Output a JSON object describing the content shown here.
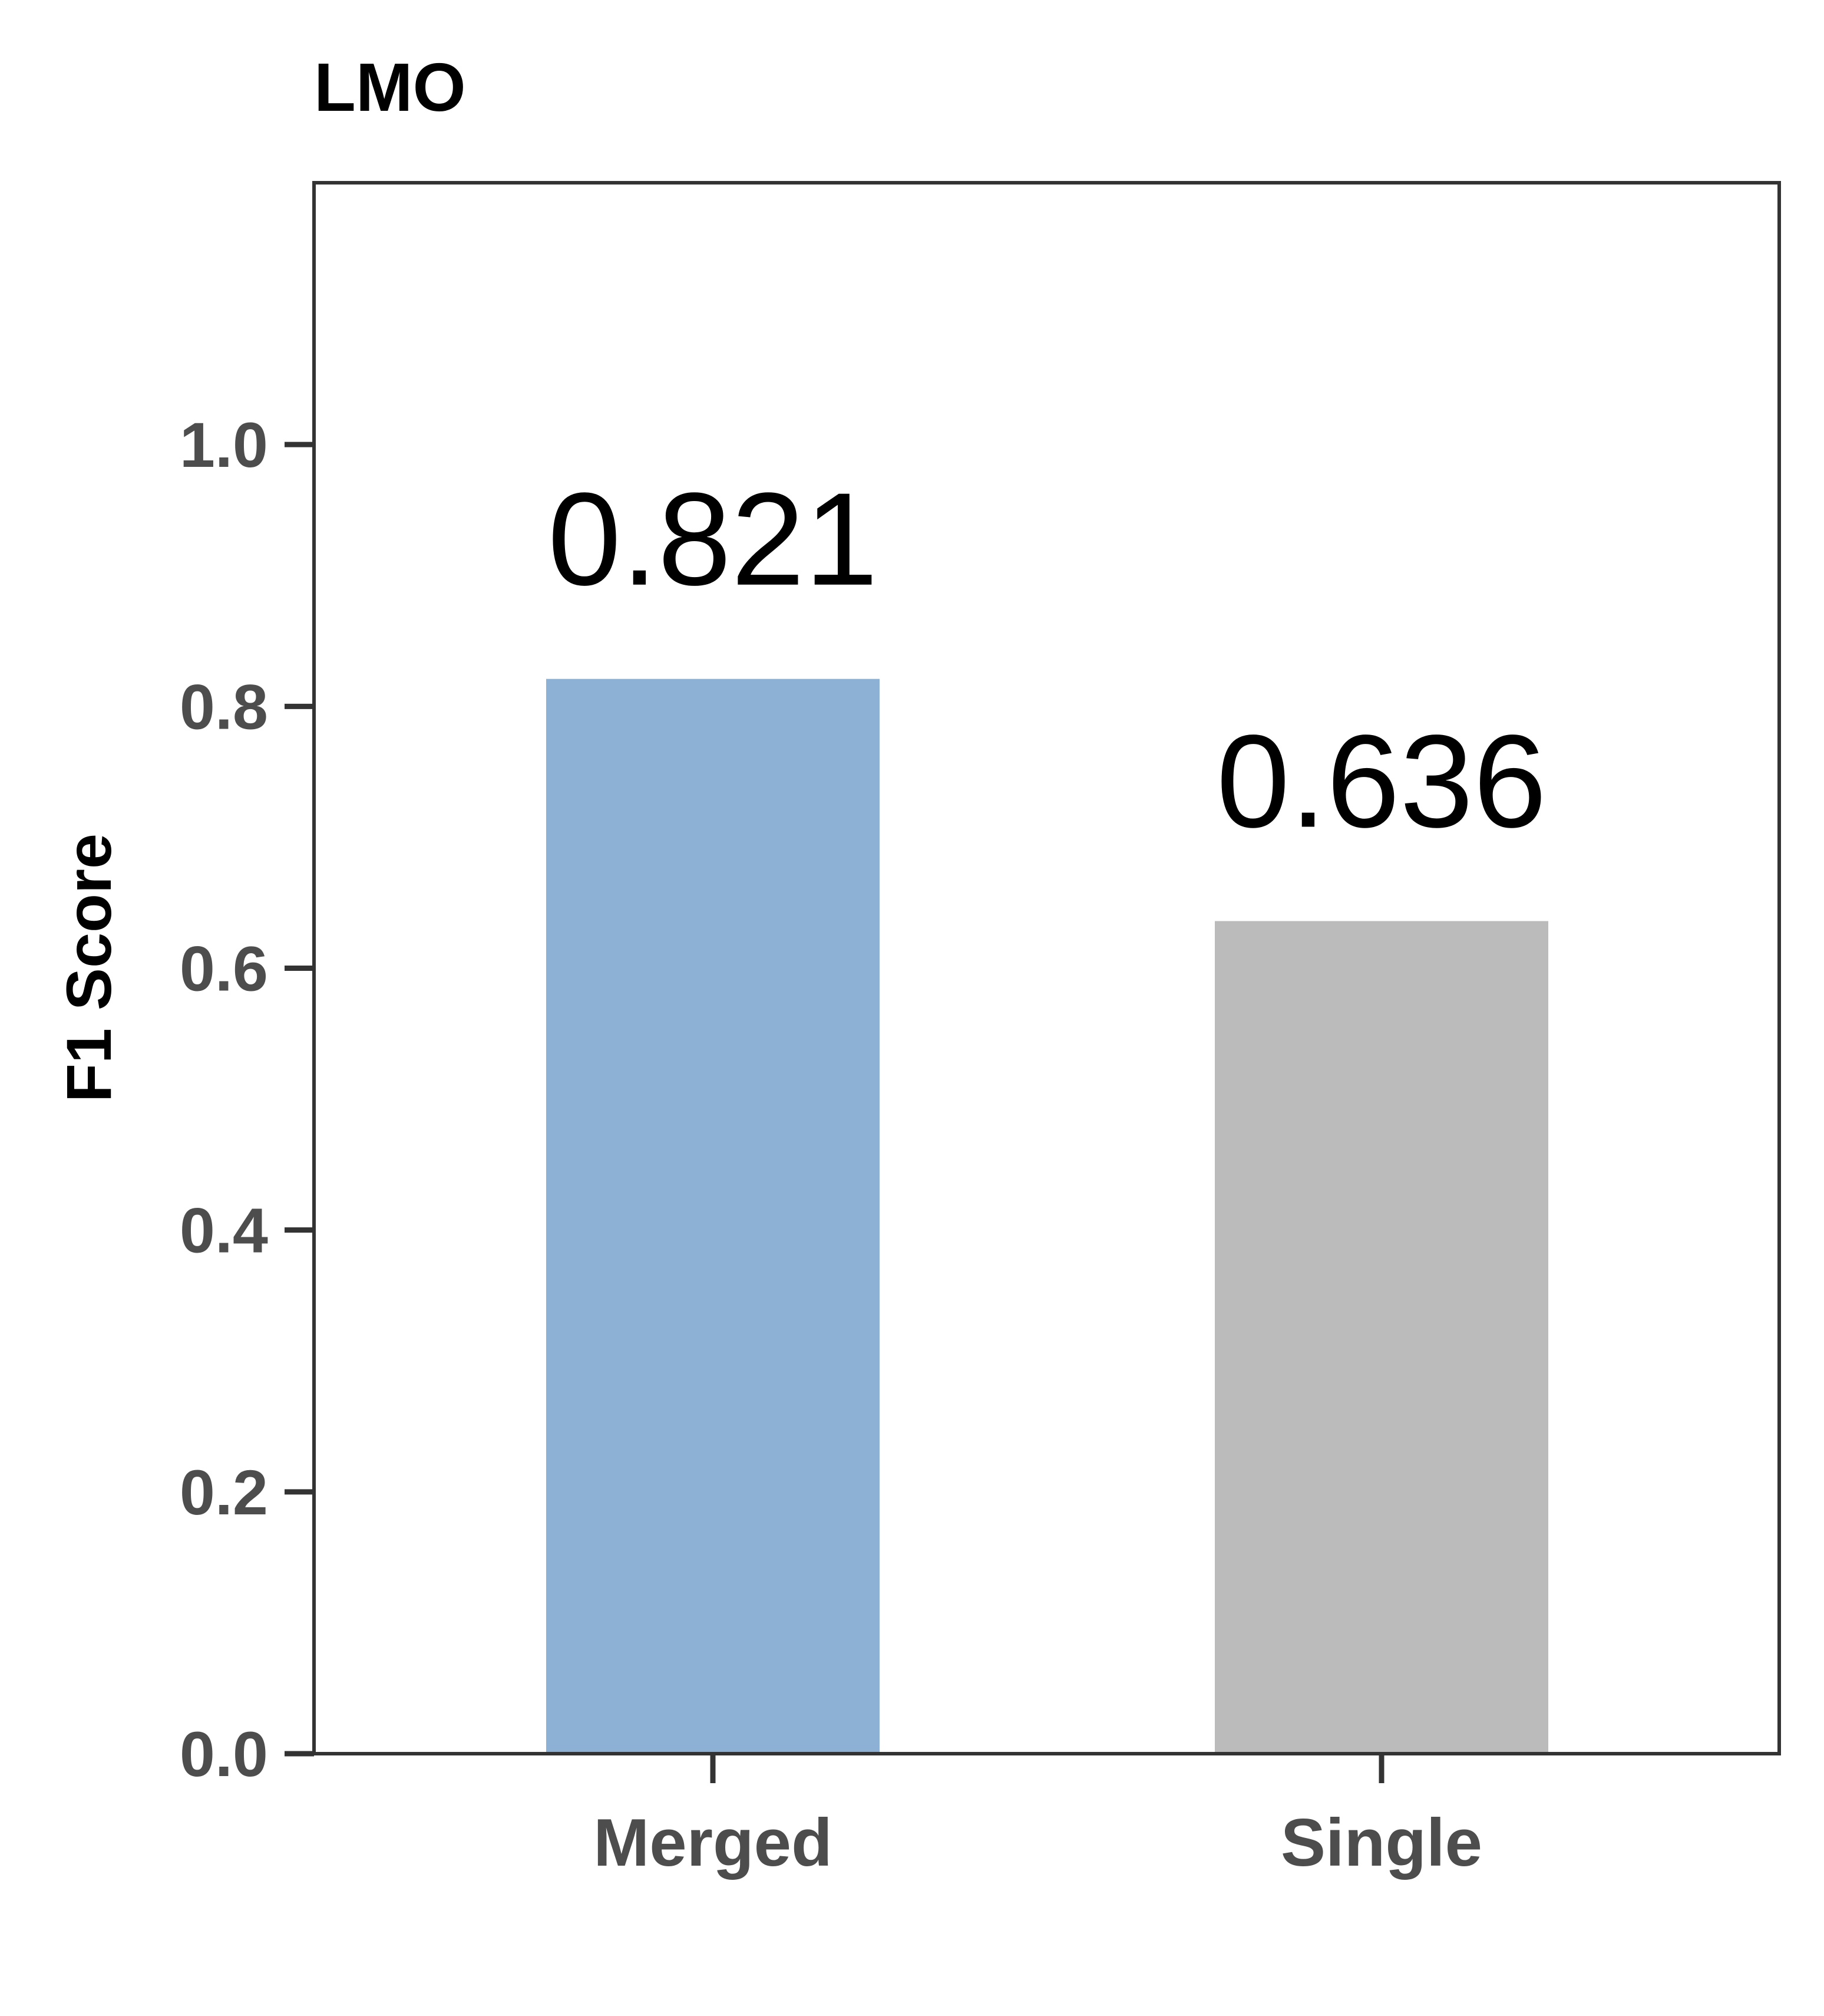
{
  "chart_data": {
    "type": "bar",
    "title": "LMO",
    "xlabel": "",
    "ylabel": "F1 Score",
    "categories": [
      "Merged",
      "Single"
    ],
    "values": [
      0.821,
      0.636
    ],
    "value_labels": [
      "0.821",
      "0.636"
    ],
    "bar_colors": [
      "#8db1d5",
      "#bbbbbb"
    ],
    "ylim": [
      0,
      1.2
    ],
    "yticks": [
      0,
      0.2,
      0.4,
      0.6,
      0.8,
      1.0
    ],
    "ytick_labels": [
      "0.0",
      "0.2",
      "0.4",
      "0.6",
      "0.8",
      "1.0"
    ],
    "grid": false,
    "legend": "none"
  }
}
